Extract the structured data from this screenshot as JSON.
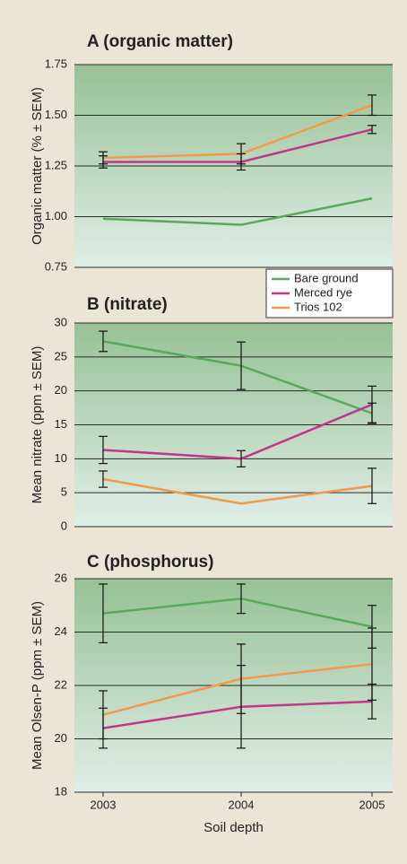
{
  "chart_data": [
    {
      "type": "line",
      "title": "A (organic matter)",
      "ylabel": "Organic matter (% ± SEM)",
      "ylim": [
        0.75,
        1.75
      ],
      "yticks": [
        0.75,
        {
          "value": 1.0,
          "label": "1.00"
        },
        1.25,
        {
          "value": 1.5,
          "label": "1.50"
        },
        1.75
      ],
      "grid": true,
      "series": [
        {
          "color": "#5aa85a",
          "values": [
            0.99,
            0.96,
            1.09
          ]
        },
        {
          "color": "#c2358a",
          "values": [
            1.27,
            1.27,
            1.43
          ],
          "errors": [
            0.03,
            0.04,
            0.02
          ]
        },
        {
          "color": "#f39a4a",
          "values": [
            1.29,
            1.31,
            1.55
          ],
          "errors": [
            0.03,
            0.05,
            0.05
          ]
        }
      ]
    },
    {
      "type": "line",
      "title": "B (nitrate)",
      "ylabel": "Mean nitrate (ppm ± SEM)",
      "ylim": [
        0,
        30
      ],
      "yticks": [
        0,
        5,
        10,
        15,
        20,
        25,
        30
      ],
      "grid": true,
      "legend": "top-right",
      "series": [
        {
          "name": "Bare ground",
          "color": "#5aa85a",
          "values": [
            27.3,
            23.7,
            16.7
          ],
          "errors": [
            1.5,
            3.5,
            1.5
          ]
        },
        {
          "name": "Merced rye",
          "color": "#c2358a",
          "values": [
            11.3,
            10,
            18
          ],
          "errors": [
            2,
            1.2,
            2.7
          ]
        },
        {
          "name": "Trios 102",
          "color": "#f39a4a",
          "values": [
            7,
            3.4,
            6
          ],
          "errors": [
            1.2,
            null,
            2.6
          ]
        }
      ]
    },
    {
      "type": "line",
      "title": "C (phosphorus)",
      "ylabel": "Mean Olsen-P (ppm ± SEM)",
      "xlabel": "Soil depth",
      "categories": [
        "2003",
        "2004",
        "2005"
      ],
      "ylim": [
        18,
        26
      ],
      "yticks": [
        18,
        20,
        22,
        24,
        26
      ],
      "grid": true,
      "series": [
        {
          "color": "#5aa85a",
          "values": [
            24.7,
            25.25,
            24.2
          ],
          "errors": [
            1.1,
            0.55,
            0.8
          ]
        },
        {
          "color": "#c2358a",
          "values": [
            20.4,
            21.2,
            21.4
          ],
          "errors": [
            0.75,
            1.55,
            0.65
          ]
        },
        {
          "color": "#f39a4a",
          "values": [
            20.9,
            22.25,
            22.8
          ],
          "errors": [
            0.9,
            1.3,
            1.35
          ]
        }
      ]
    }
  ]
}
